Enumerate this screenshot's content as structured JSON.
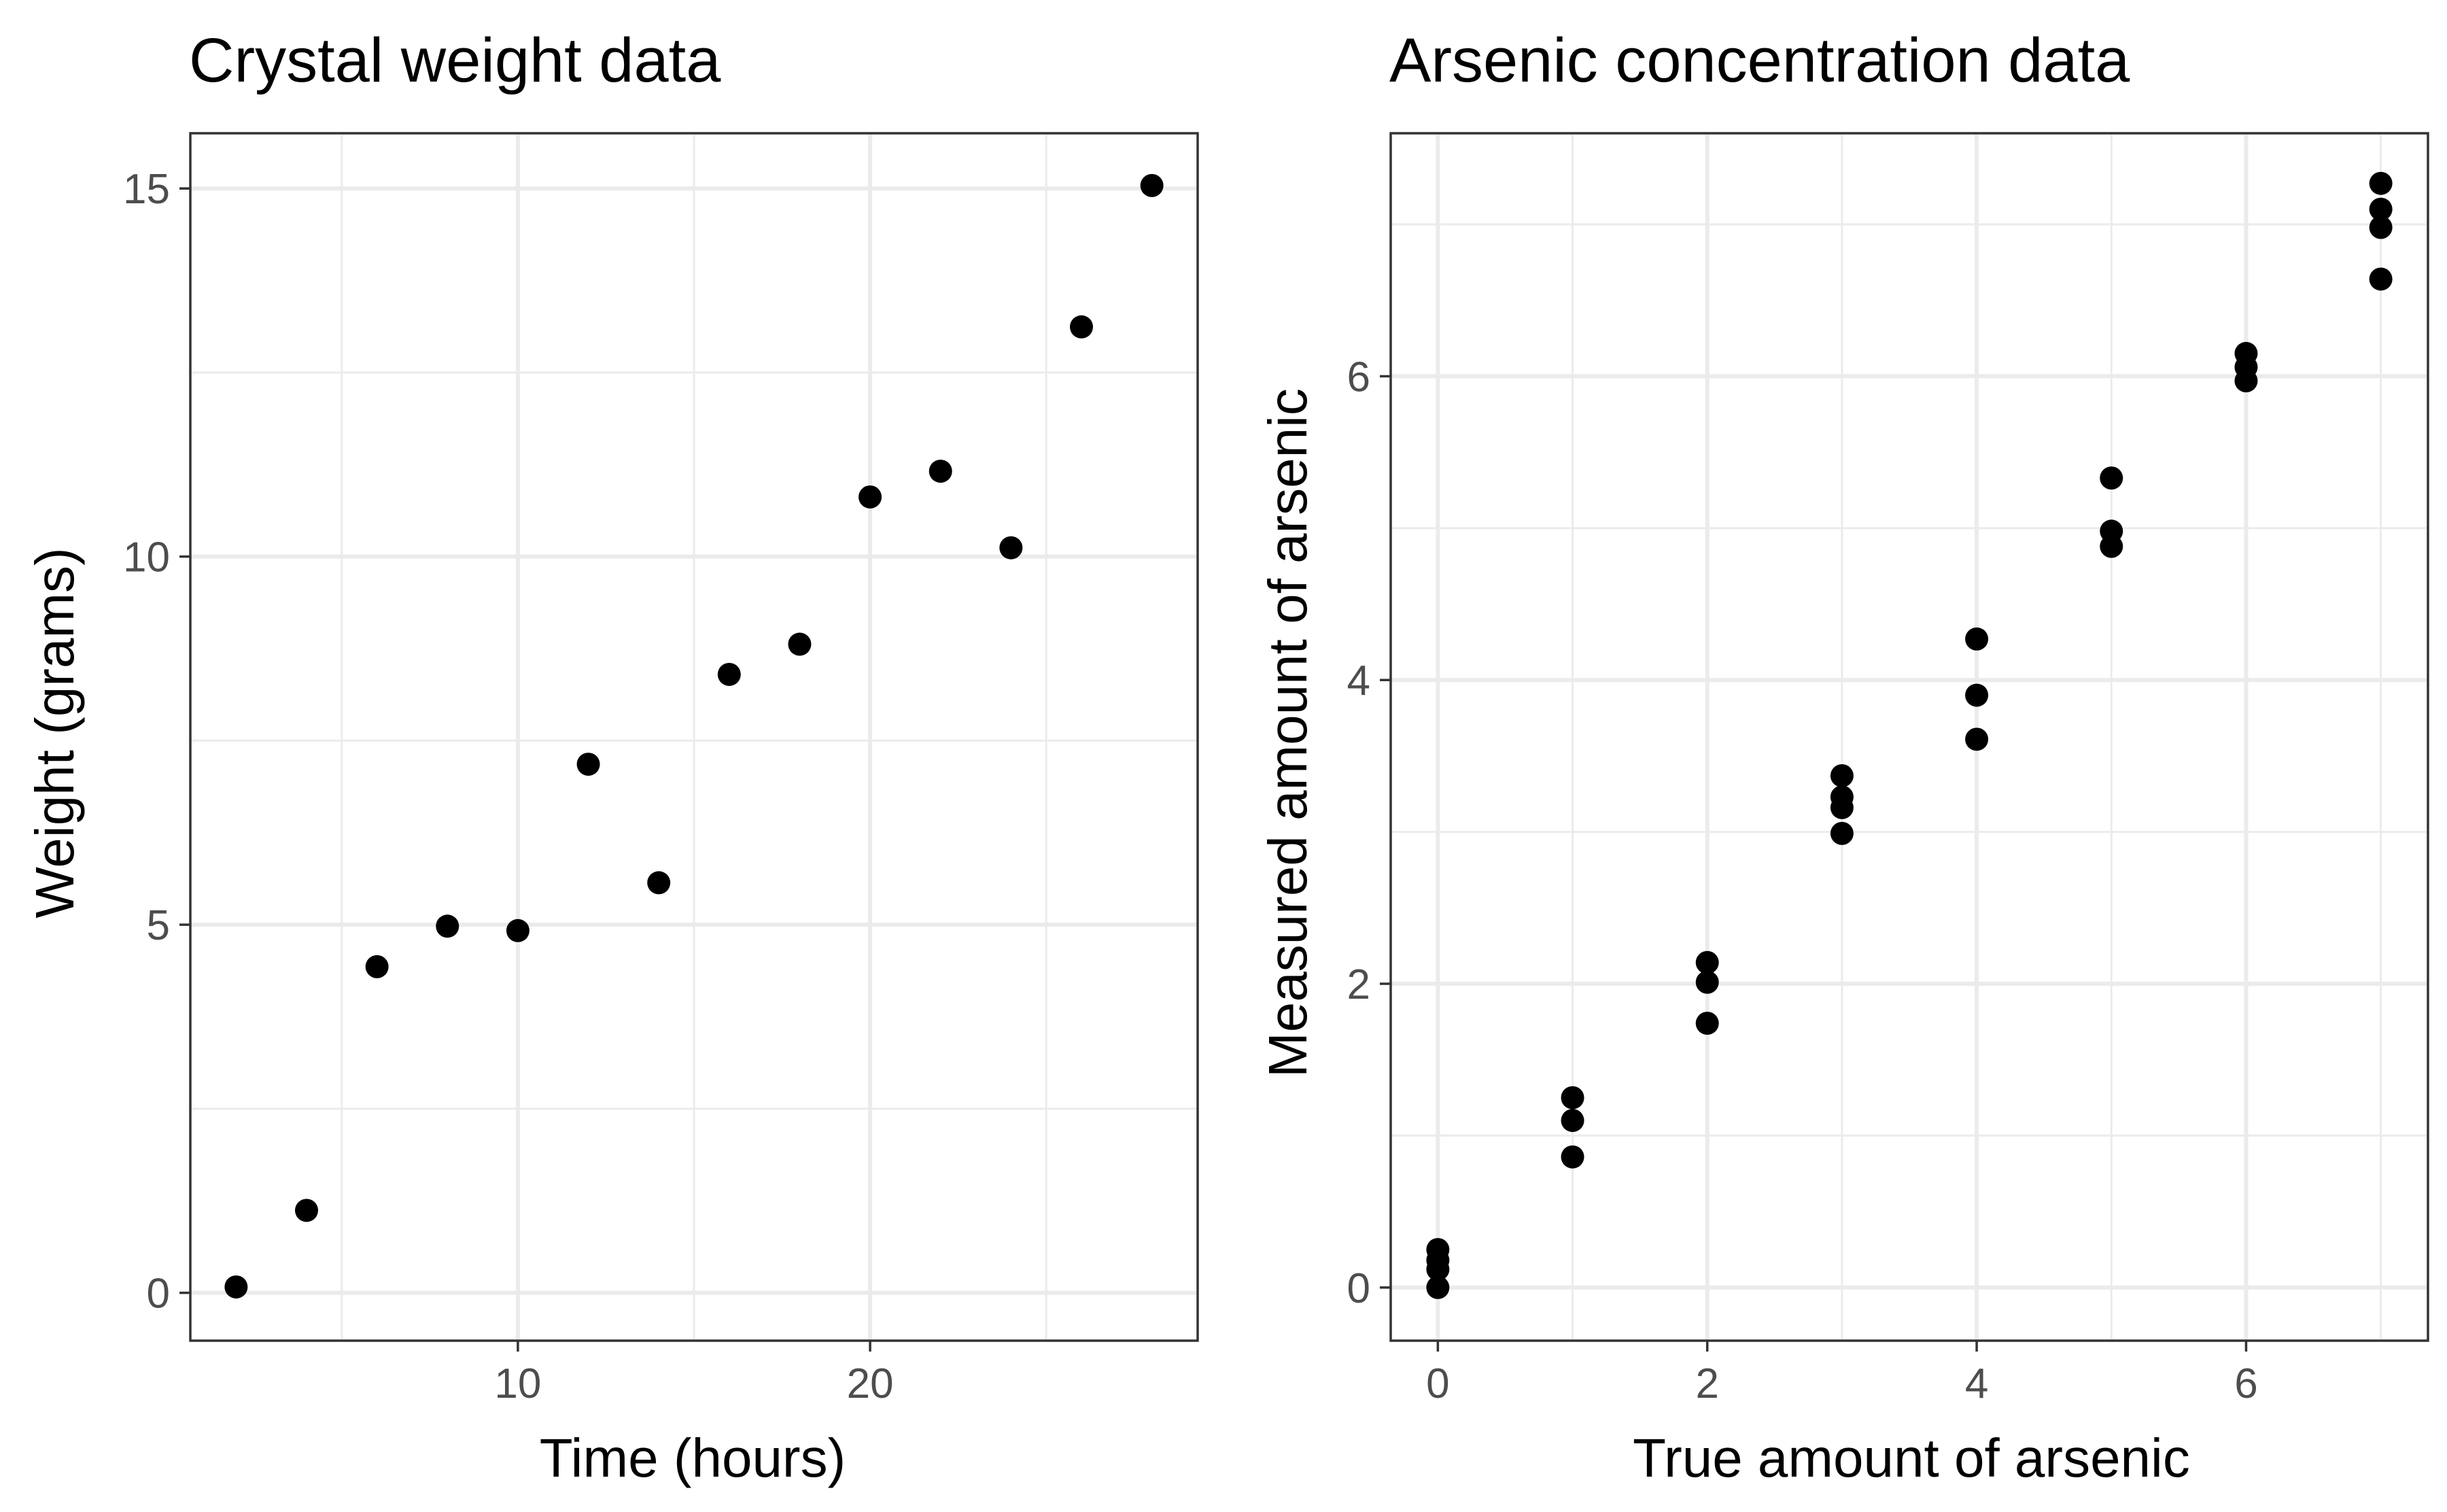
{
  "chart_data": [
    {
      "type": "scatter",
      "title": "Crystal weight data",
      "xlabel": "Time (hours)",
      "ylabel": "Weight (grams)",
      "xlim": [
        0.7,
        29.3
      ],
      "ylim": [
        -0.65,
        15.75
      ],
      "x_ticks": [
        10,
        20
      ],
      "x_tick_labels": [
        "10",
        "20"
      ],
      "x_minor_ticks": [
        5,
        15,
        25
      ],
      "y_ticks": [
        0,
        5,
        10,
        15
      ],
      "y_tick_labels": [
        "0",
        "5",
        "10",
        "15"
      ],
      "y_minor_ticks": [
        2.5,
        7.5,
        12.5
      ],
      "grid": true,
      "marker_color": "#000000",
      "points": [
        {
          "x": 2,
          "y": 0.08
        },
        {
          "x": 4,
          "y": 1.12
        },
        {
          "x": 6,
          "y": 4.43
        },
        {
          "x": 8,
          "y": 4.98
        },
        {
          "x": 10,
          "y": 4.92
        },
        {
          "x": 12,
          "y": 7.18
        },
        {
          "x": 14,
          "y": 5.57
        },
        {
          "x": 16,
          "y": 8.4
        },
        {
          "x": 18,
          "y": 8.81
        },
        {
          "x": 20,
          "y": 10.81
        },
        {
          "x": 22,
          "y": 11.16
        },
        {
          "x": 24,
          "y": 10.12
        },
        {
          "x": 26,
          "y": 13.12
        },
        {
          "x": 28,
          "y": 15.04
        }
      ]
    },
    {
      "type": "scatter",
      "title": "Arsenic concentration data",
      "xlabel": "True amount of arsenic",
      "ylabel": "Measured amount of arsenic",
      "xlim": [
        -0.35,
        7.35
      ],
      "ylim": [
        -0.35,
        7.6
      ],
      "x_ticks": [
        0,
        2,
        4,
        6
      ],
      "x_tick_labels": [
        "0",
        "2",
        "4",
        "6"
      ],
      "x_minor_ticks": [
        1,
        3,
        5,
        7
      ],
      "y_ticks": [
        0,
        2,
        4,
        6
      ],
      "y_tick_labels": [
        "0",
        "2",
        "4",
        "6"
      ],
      "y_minor_ticks": [
        1,
        3,
        5,
        7
      ],
      "grid": true,
      "marker_color": "#000000",
      "points": [
        {
          "x": 0,
          "y": 0.0
        },
        {
          "x": 0,
          "y": 0.12
        },
        {
          "x": 0,
          "y": 0.18
        },
        {
          "x": 0,
          "y": 0.25
        },
        {
          "x": 1,
          "y": 0.86
        },
        {
          "x": 1,
          "y": 1.1
        },
        {
          "x": 1,
          "y": 1.25
        },
        {
          "x": 2,
          "y": 1.74
        },
        {
          "x": 2,
          "y": 2.01
        },
        {
          "x": 2,
          "y": 2.14
        },
        {
          "x": 3,
          "y": 2.99
        },
        {
          "x": 3,
          "y": 3.16
        },
        {
          "x": 3,
          "y": 3.23
        },
        {
          "x": 3,
          "y": 3.37
        },
        {
          "x": 4,
          "y": 3.61
        },
        {
          "x": 4,
          "y": 3.9
        },
        {
          "x": 4,
          "y": 4.27
        },
        {
          "x": 5,
          "y": 4.88
        },
        {
          "x": 5,
          "y": 4.98
        },
        {
          "x": 5,
          "y": 5.33
        },
        {
          "x": 6,
          "y": 5.97
        },
        {
          "x": 6,
          "y": 6.06
        },
        {
          "x": 6,
          "y": 6.15
        },
        {
          "x": 7,
          "y": 6.64
        },
        {
          "x": 7,
          "y": 6.98
        },
        {
          "x": 7,
          "y": 7.1
        },
        {
          "x": 7,
          "y": 7.27
        }
      ]
    }
  ]
}
